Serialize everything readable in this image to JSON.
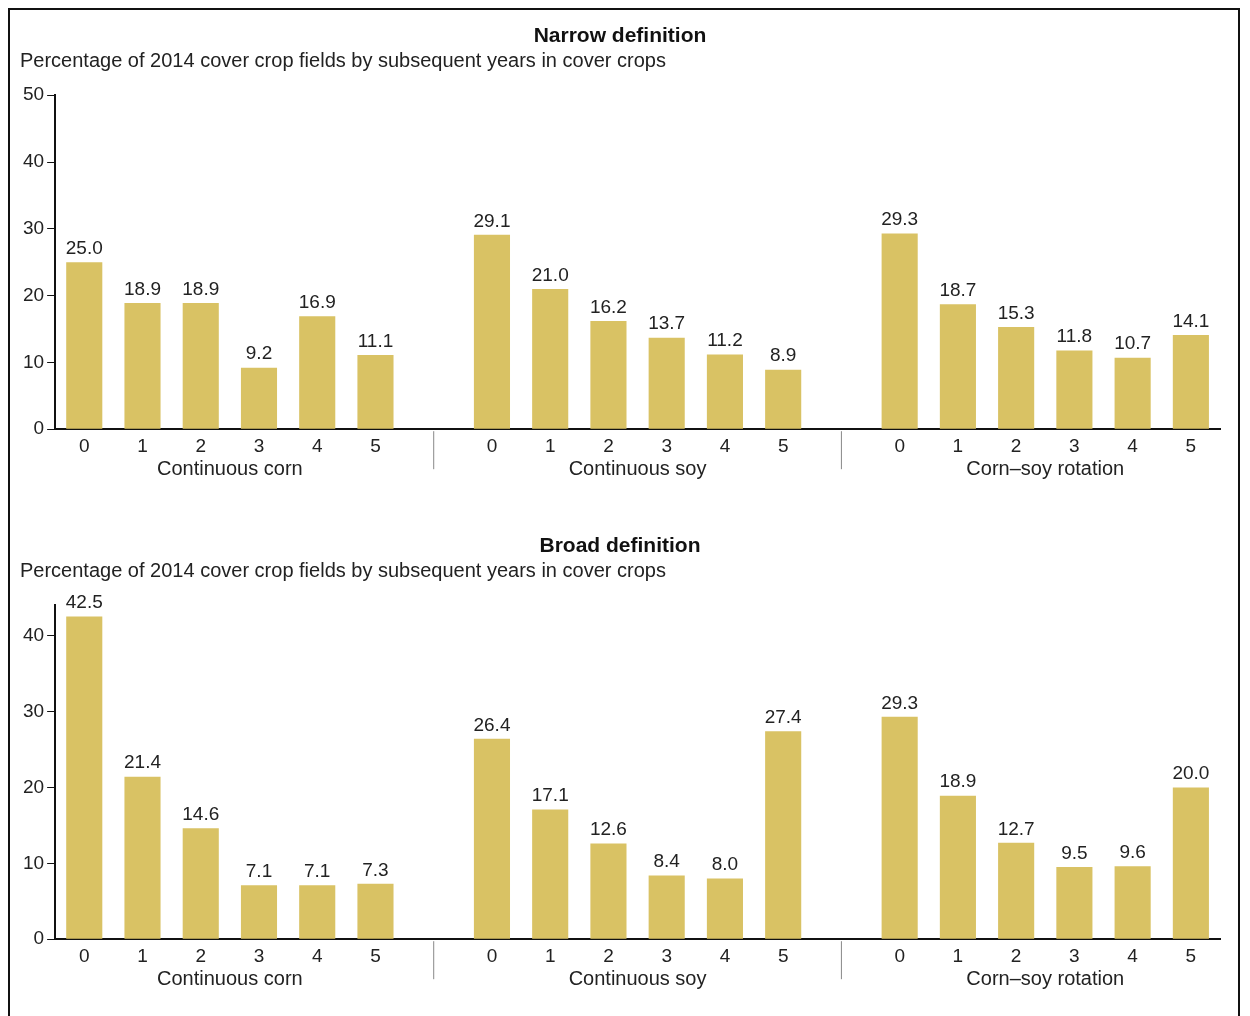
{
  "chart_data": [
    {
      "type": "bar",
      "title": "Narrow definition",
      "subtitle": "Percentage of 2014 cover crop fields by subsequent years in cover crops",
      "categories": [
        "0",
        "1",
        "2",
        "3",
        "4",
        "5",
        null,
        "0",
        "1",
        "2",
        "3",
        "4",
        "5",
        null,
        "0",
        "1",
        "2",
        "3",
        "4",
        "5"
      ],
      "values": [
        25.0,
        18.9,
        18.9,
        9.2,
        16.9,
        11.1,
        null,
        29.1,
        21.0,
        16.2,
        13.7,
        11.2,
        8.9,
        null,
        29.3,
        18.7,
        15.3,
        11.8,
        10.7,
        14.1
      ],
      "value_labels": [
        "25.0",
        "18.9",
        "18.9",
        "9.2",
        "16.9",
        "11.1",
        null,
        "29.1",
        "21.0",
        "16.2",
        "13.7",
        "11.2",
        "8.9",
        null,
        "29.3",
        "18.7",
        "15.3",
        "11.8",
        "10.7",
        "14.1"
      ],
      "color": "#d9c264",
      "ylim": [
        0,
        50
      ],
      "yticks": [
        0,
        10,
        20,
        30,
        40,
        50
      ],
      "grid": false,
      "legend": false,
      "annotations": [
        "Continuous corn",
        "Continuous soy",
        "Corn–soy rotation"
      ]
    },
    {
      "type": "bar",
      "title": "Broad definition",
      "subtitle": "Percentage of 2014 cover crop fields by subsequent years in cover crops",
      "categories": [
        "0",
        "1",
        "2",
        "3",
        "4",
        "5",
        null,
        "0",
        "1",
        "2",
        "3",
        "4",
        "5",
        null,
        "0",
        "1",
        "2",
        "3",
        "4",
        "5"
      ],
      "values": [
        42.5,
        21.4,
        14.6,
        7.1,
        7.1,
        7.3,
        null,
        26.4,
        17.1,
        12.6,
        8.4,
        8.0,
        27.4,
        null,
        29.3,
        18.9,
        12.7,
        9.5,
        9.6,
        20.0
      ],
      "value_labels": [
        "42.5",
        "21.4",
        "14.6",
        "7.1",
        "7.1",
        "7.3",
        null,
        "26.4",
        "17.1",
        "12.6",
        "8.4",
        "8.0",
        "27.4",
        null,
        "29.3",
        "18.9",
        "12.7",
        "9.5",
        "9.6",
        "20.0"
      ],
      "color": "#d9c264",
      "ylim": [
        0,
        44
      ],
      "yticks": [
        0,
        10,
        20,
        30,
        40
      ],
      "grid": false,
      "legend": false,
      "annotations": [
        "Continuous corn",
        "Continuous soy",
        "Corn–soy rotation"
      ]
    }
  ]
}
